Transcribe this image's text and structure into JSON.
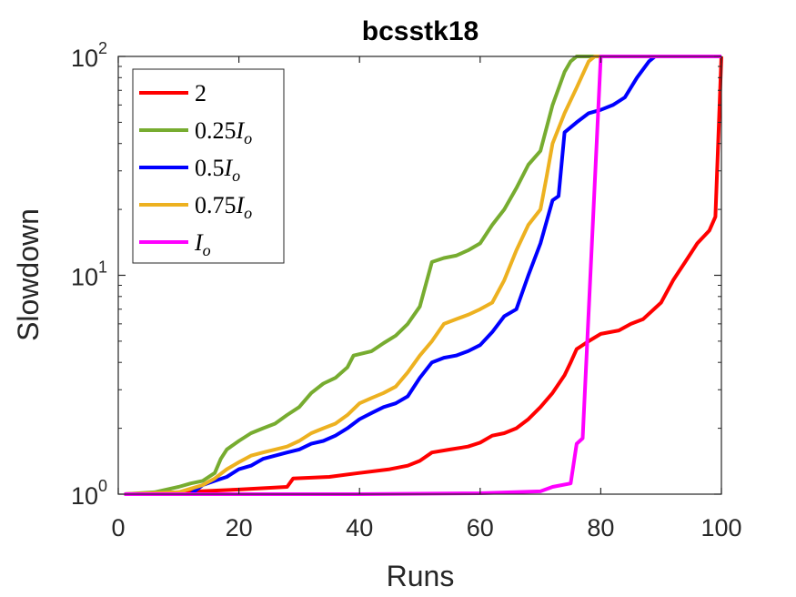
{
  "chart_data": {
    "type": "line",
    "title": "bcsstk18",
    "xlabel": "Runs",
    "ylabel": "Slowdown",
    "xlim": [
      0,
      100
    ],
    "ylim": [
      1,
      100
    ],
    "yscale": "log",
    "xticks": [
      0,
      20,
      40,
      60,
      80,
      100
    ],
    "yticks": [
      {
        "value": 1,
        "base": "10",
        "exp": "0"
      },
      {
        "value": 10,
        "base": "10",
        "exp": "1"
      },
      {
        "value": 100,
        "base": "10",
        "exp": "2"
      }
    ],
    "grid": false,
    "legend_position": "top-left",
    "series": [
      {
        "name": "2",
        "legend": {
          "main": "2",
          "sub": ""
        },
        "color": "#ff0000",
        "points": [
          [
            1,
            1.0
          ],
          [
            10,
            1.02
          ],
          [
            20,
            1.05
          ],
          [
            28,
            1.08
          ],
          [
            29,
            1.18
          ],
          [
            35,
            1.2
          ],
          [
            40,
            1.25
          ],
          [
            45,
            1.3
          ],
          [
            48,
            1.35
          ],
          [
            50,
            1.42
          ],
          [
            52,
            1.55
          ],
          [
            55,
            1.6
          ],
          [
            58,
            1.65
          ],
          [
            60,
            1.72
          ],
          [
            62,
            1.85
          ],
          [
            64,
            1.9
          ],
          [
            66,
            2.0
          ],
          [
            68,
            2.2
          ],
          [
            70,
            2.5
          ],
          [
            72,
            2.9
          ],
          [
            74,
            3.5
          ],
          [
            75,
            4.0
          ],
          [
            76,
            4.6
          ],
          [
            78,
            5.0
          ],
          [
            80,
            5.4
          ],
          [
            83,
            5.6
          ],
          [
            85,
            6.0
          ],
          [
            87,
            6.3
          ],
          [
            90,
            7.5
          ],
          [
            92,
            9.5
          ],
          [
            94,
            11.5
          ],
          [
            96,
            14.0
          ],
          [
            98,
            16.0
          ],
          [
            99,
            18.5
          ],
          [
            100,
            100
          ]
        ]
      },
      {
        "name": "0.25Io",
        "legend": {
          "main": "0.25I",
          "sub": "o"
        },
        "color": "#77ac30",
        "points": [
          [
            1,
            1.0
          ],
          [
            6,
            1.02
          ],
          [
            8,
            1.05
          ],
          [
            10,
            1.08
          ],
          [
            12,
            1.12
          ],
          [
            14,
            1.15
          ],
          [
            16,
            1.25
          ],
          [
            17,
            1.45
          ],
          [
            18,
            1.6
          ],
          [
            20,
            1.75
          ],
          [
            22,
            1.9
          ],
          [
            24,
            2.0
          ],
          [
            26,
            2.1
          ],
          [
            28,
            2.3
          ],
          [
            30,
            2.5
          ],
          [
            32,
            2.9
          ],
          [
            34,
            3.2
          ],
          [
            36,
            3.4
          ],
          [
            38,
            3.8
          ],
          [
            39,
            4.3
          ],
          [
            42,
            4.5
          ],
          [
            44,
            4.9
          ],
          [
            46,
            5.3
          ],
          [
            48,
            6.0
          ],
          [
            50,
            7.2
          ],
          [
            52,
            11.5
          ],
          [
            54,
            12.0
          ],
          [
            56,
            12.3
          ],
          [
            58,
            13.0
          ],
          [
            60,
            14.0
          ],
          [
            62,
            17.0
          ],
          [
            64,
            20.0
          ],
          [
            66,
            25.0
          ],
          [
            68,
            32.0
          ],
          [
            70,
            37.0
          ],
          [
            72,
            60.0
          ],
          [
            74,
            85.0
          ],
          [
            75,
            95.0
          ],
          [
            76,
            100
          ],
          [
            80,
            100
          ]
        ]
      },
      {
        "name": "0.5Io",
        "legend": {
          "main": "0.5I",
          "sub": "o"
        },
        "color": "#0000ff",
        "points": [
          [
            1,
            1.0
          ],
          [
            12,
            1.0
          ],
          [
            14,
            1.1
          ],
          [
            16,
            1.15
          ],
          [
            18,
            1.2
          ],
          [
            20,
            1.3
          ],
          [
            22,
            1.35
          ],
          [
            24,
            1.45
          ],
          [
            26,
            1.5
          ],
          [
            28,
            1.55
          ],
          [
            30,
            1.6
          ],
          [
            32,
            1.7
          ],
          [
            34,
            1.75
          ],
          [
            36,
            1.85
          ],
          [
            38,
            2.0
          ],
          [
            40,
            2.2
          ],
          [
            42,
            2.35
          ],
          [
            44,
            2.5
          ],
          [
            46,
            2.6
          ],
          [
            48,
            2.8
          ],
          [
            50,
            3.4
          ],
          [
            52,
            4.0
          ],
          [
            54,
            4.2
          ],
          [
            56,
            4.3
          ],
          [
            58,
            4.5
          ],
          [
            60,
            4.8
          ],
          [
            62,
            5.5
          ],
          [
            64,
            6.5
          ],
          [
            66,
            7.0
          ],
          [
            68,
            10.0
          ],
          [
            70,
            14.0
          ],
          [
            72,
            22.0
          ],
          [
            73,
            23.0
          ],
          [
            74,
            45.0
          ],
          [
            76,
            50.0
          ],
          [
            78,
            55.0
          ],
          [
            80,
            57.0
          ],
          [
            82,
            60.0
          ],
          [
            84,
            65.0
          ],
          [
            86,
            80.0
          ],
          [
            88,
            95.0
          ],
          [
            89,
            100
          ]
        ]
      },
      {
        "name": "0.75Io",
        "legend": {
          "main": "0.75I",
          "sub": "o"
        },
        "color": "#edb120",
        "points": [
          [
            1,
            1.0
          ],
          [
            10,
            1.02
          ],
          [
            12,
            1.06
          ],
          [
            14,
            1.1
          ],
          [
            16,
            1.18
          ],
          [
            18,
            1.3
          ],
          [
            20,
            1.4
          ],
          [
            22,
            1.5
          ],
          [
            24,
            1.55
          ],
          [
            26,
            1.6
          ],
          [
            28,
            1.65
          ],
          [
            30,
            1.75
          ],
          [
            32,
            1.9
          ],
          [
            34,
            2.0
          ],
          [
            36,
            2.1
          ],
          [
            38,
            2.3
          ],
          [
            40,
            2.6
          ],
          [
            42,
            2.75
          ],
          [
            44,
            2.9
          ],
          [
            46,
            3.1
          ],
          [
            48,
            3.6
          ],
          [
            50,
            4.3
          ],
          [
            52,
            5.0
          ],
          [
            54,
            6.0
          ],
          [
            56,
            6.3
          ],
          [
            58,
            6.6
          ],
          [
            60,
            7.0
          ],
          [
            62,
            7.5
          ],
          [
            64,
            9.5
          ],
          [
            66,
            13.0
          ],
          [
            68,
            17.0
          ],
          [
            70,
            20.0
          ],
          [
            71,
            28.0
          ],
          [
            72,
            40.0
          ],
          [
            74,
            55.0
          ],
          [
            76,
            72.0
          ],
          [
            78,
            95.0
          ],
          [
            79,
            100
          ],
          [
            80,
            100
          ]
        ]
      },
      {
        "name": "Io",
        "legend": {
          "main": "I",
          "sub": "o"
        },
        "color": "#ff00ff",
        "points": [
          [
            1,
            1.0
          ],
          [
            40,
            1.0
          ],
          [
            60,
            1.01
          ],
          [
            70,
            1.03
          ],
          [
            72,
            1.08
          ],
          [
            75,
            1.12
          ],
          [
            76,
            1.7
          ],
          [
            77,
            1.8
          ],
          [
            80,
            100
          ],
          [
            100,
            100
          ]
        ]
      }
    ]
  }
}
